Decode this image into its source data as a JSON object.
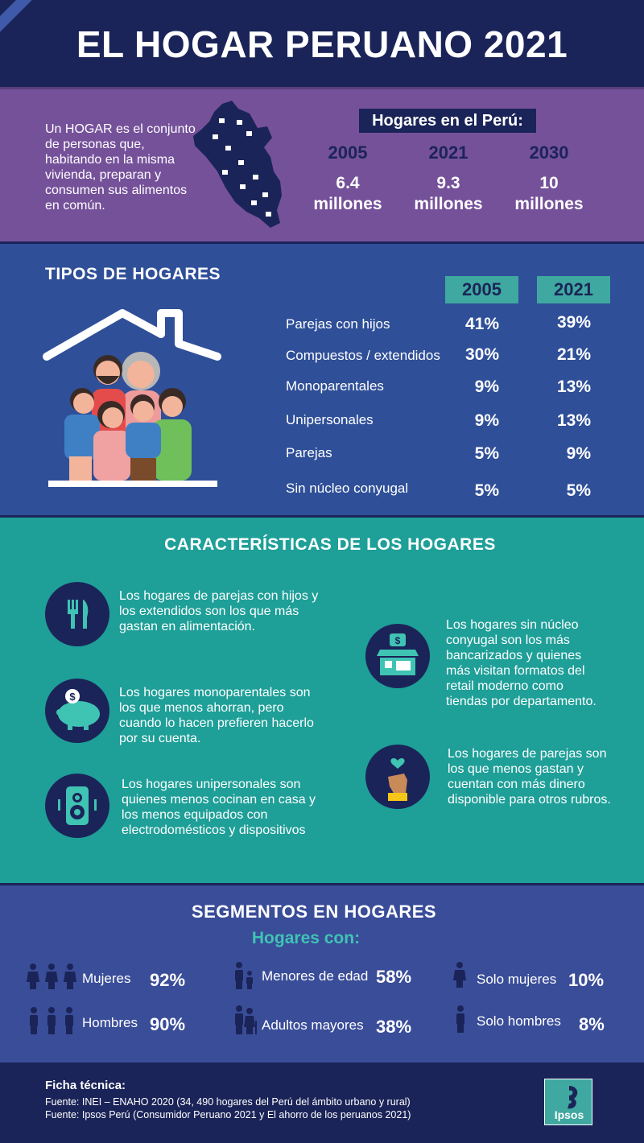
{
  "header": {
    "title": "EL HOGAR PERUANO 2021"
  },
  "hogar": {
    "definition": "Un HOGAR es el conjunto de personas que, habitando en la misma vivienda, preparan y consumen sus alimentos en común.",
    "peru_title": "Hogares en el Perú:",
    "years": [
      {
        "year": "2005",
        "value": "6.4",
        "unit": "millones"
      },
      {
        "year": "2021",
        "value": "9.3",
        "unit": "millones"
      },
      {
        "year": "2030",
        "value": "10",
        "unit": "millones"
      }
    ]
  },
  "tipos": {
    "title": "TIPOS DE HOGARES",
    "col_2005": "2005",
    "col_2021": "2021",
    "rows": [
      {
        "label": "Parejas con hijos",
        "v2005": "41%",
        "v2021": "39%"
      },
      {
        "label": "Compuestos / extendidos",
        "v2005": "30%",
        "v2021": "21%"
      },
      {
        "label": "Monoparentales",
        "v2005": "9%",
        "v2021": "13%"
      },
      {
        "label": "Unipersonales",
        "v2005": "9%",
        "v2021": "13%"
      },
      {
        "label": "Parejas",
        "v2005": "5%",
        "v2021": "9%"
      },
      {
        "label": "Sin núcleo conyugal",
        "v2005": "5%",
        "v2021": "5%"
      }
    ]
  },
  "caracteristicas": {
    "title": "CARACTERÍSTICAS DE LOS HOGARES",
    "items": [
      {
        "icon": "cutlery-icon",
        "text": "Los hogares de parejas con hijos y los extendidos son los que más gastan en alimentación."
      },
      {
        "icon": "piggy-bank-icon",
        "text": "Los hogares monoparentales son los que menos ahorran, pero cuando lo hacen prefieren hacerlo por su cuenta."
      },
      {
        "icon": "speaker-icon",
        "text": "Los hogares unipersonales son quienes menos cocinan en casa y los menos equipados con electrodomésticos y dispositivos"
      },
      {
        "icon": "store-icon",
        "text": "Los hogares sin núcleo conyugal son los más bancarizados y quienes más visitan formatos del retail moderno como tiendas por departamento."
      },
      {
        "icon": "hand-heart-icon",
        "text": "Los hogares de parejas son los que menos gastan y cuentan con más dinero disponible para otros rubros."
      }
    ]
  },
  "segmentos": {
    "title": "SEGMENTOS EN HOGARES",
    "subtitle": "Hogares con:",
    "items": [
      {
        "label": "Mujeres",
        "value": "92%"
      },
      {
        "label": "Hombres",
        "value": "90%"
      },
      {
        "label": "Menores de edad",
        "value": "58%"
      },
      {
        "label": "Adultos mayores",
        "value": "38%"
      },
      {
        "label": "Solo mujeres",
        "value": "10%"
      },
      {
        "label": "Solo hombres",
        "value": "8%"
      }
    ]
  },
  "footer": {
    "ficha_title": "Ficha técnica:",
    "fuente1": "Fuente: INEI – ENAHO 2020 (34, 490 hogares del Perú del ámbito urbano y rural)",
    "fuente2": "Fuente: Ipsos Perú (Consumidor Peruano 2021 y El ahorro de los peruanos 2021)",
    "logo_text": "Ipsos"
  },
  "colors": {
    "navy": "#1b2458",
    "purple": "#75519a",
    "blue": "#2f4f98",
    "teal": "#1e9f98",
    "accent_teal": "#3fa8a0"
  }
}
